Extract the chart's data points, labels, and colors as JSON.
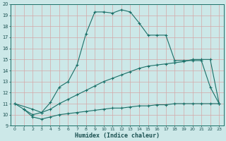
{
  "xlabel": "Humidex (Indice chaleur)",
  "bg_color": "#cce8e8",
  "grid_color_h": "#c8b8b8",
  "grid_color_v": "#c8b8b8",
  "line_color": "#1a7068",
  "xlim": [
    -0.5,
    23.5
  ],
  "ylim": [
    9,
    20
  ],
  "xticks": [
    0,
    1,
    2,
    3,
    4,
    5,
    6,
    7,
    8,
    9,
    10,
    11,
    12,
    13,
    14,
    15,
    16,
    17,
    18,
    19,
    20,
    21,
    22,
    23
  ],
  "yticks": [
    9,
    10,
    11,
    12,
    13,
    14,
    15,
    16,
    17,
    18,
    19,
    20
  ],
  "line1_x": [
    0,
    1,
    2,
    3,
    4,
    5,
    6,
    7,
    8,
    9,
    10,
    11,
    12,
    13,
    14,
    15,
    16,
    17,
    18,
    19,
    20,
    21,
    22,
    23
  ],
  "line1_y": [
    11.0,
    10.5,
    10.0,
    10.2,
    11.1,
    12.5,
    13.0,
    14.5,
    17.3,
    19.3,
    19.3,
    19.2,
    19.5,
    19.3,
    18.3,
    17.2,
    17.2,
    17.2,
    14.9,
    14.9,
    14.9,
    14.9,
    12.5,
    11.0
  ],
  "line2_x": [
    0,
    2,
    3,
    4,
    5,
    6,
    7,
    8,
    9,
    10,
    11,
    12,
    13,
    14,
    15,
    16,
    17,
    18,
    19,
    20,
    21,
    22,
    23
  ],
  "line2_y": [
    11.0,
    10.5,
    10.2,
    10.5,
    11.0,
    11.4,
    11.8,
    12.2,
    12.6,
    13.0,
    13.3,
    13.6,
    13.9,
    14.2,
    14.4,
    14.5,
    14.6,
    14.7,
    14.8,
    15.0,
    15.0,
    15.0,
    11.0
  ],
  "line3_x": [
    1,
    2,
    3,
    4,
    5,
    6,
    7,
    8,
    9,
    10,
    11,
    12,
    13,
    14,
    15,
    16,
    17,
    18,
    19,
    20,
    21,
    22,
    23
  ],
  "line3_y": [
    10.5,
    9.8,
    9.6,
    9.8,
    10.0,
    10.1,
    10.2,
    10.3,
    10.4,
    10.5,
    10.6,
    10.6,
    10.7,
    10.8,
    10.8,
    10.9,
    10.9,
    11.0,
    11.0,
    11.0,
    11.0,
    11.0,
    11.0
  ]
}
